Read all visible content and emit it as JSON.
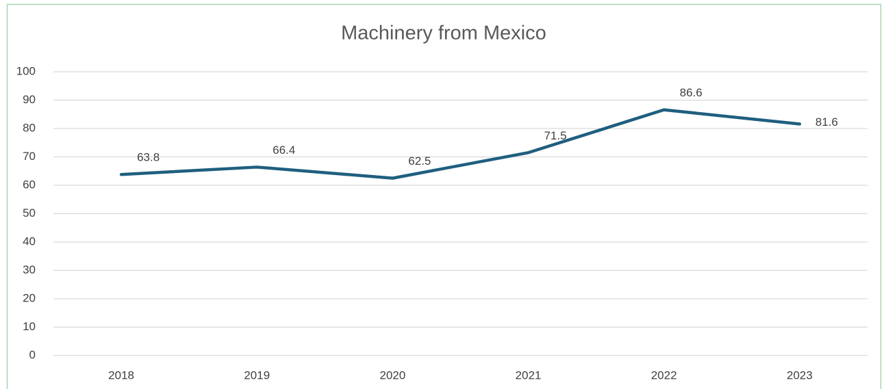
{
  "chart_data": {
    "type": "line",
    "title": "Machinery from Mexico",
    "categories": [
      "2018",
      "2019",
      "2020",
      "2021",
      "2022",
      "2023"
    ],
    "series": [
      {
        "name": "Machinery from Mexico",
        "color": "#1f5f7f",
        "values": [
          63.8,
          66.4,
          62.5,
          71.5,
          86.6,
          81.6
        ]
      }
    ],
    "ylim": [
      0,
      100
    ],
    "yticks": [
      0,
      10,
      20,
      30,
      40,
      50,
      60,
      70,
      80,
      90,
      100
    ],
    "grid": true,
    "data_labels": true
  }
}
